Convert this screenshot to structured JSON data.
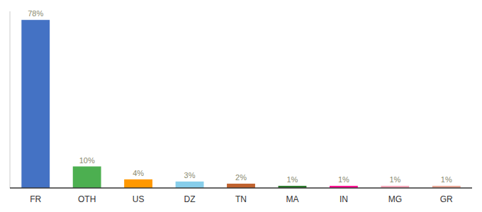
{
  "chart_data": {
    "type": "bar",
    "categories": [
      "FR",
      "OTH",
      "US",
      "DZ",
      "TN",
      "MA",
      "IN",
      "MG",
      "GR"
    ],
    "values": [
      78,
      10,
      4,
      3,
      2,
      1,
      1,
      1,
      1
    ],
    "value_labels": [
      "78%",
      "10%",
      "4%",
      "3%",
      "2%",
      "1%",
      "1%",
      "1%",
      "1%"
    ],
    "colors": [
      "#4472c4",
      "#4caf50",
      "#ff9800",
      "#87ceeb",
      "#c0622e",
      "#2d7a2d",
      "#ff1493",
      "#f4a7b9",
      "#e8a898"
    ],
    "ylim": [
      0,
      82
    ],
    "grid": false,
    "data_labels": true,
    "tick_labels": "x"
  }
}
